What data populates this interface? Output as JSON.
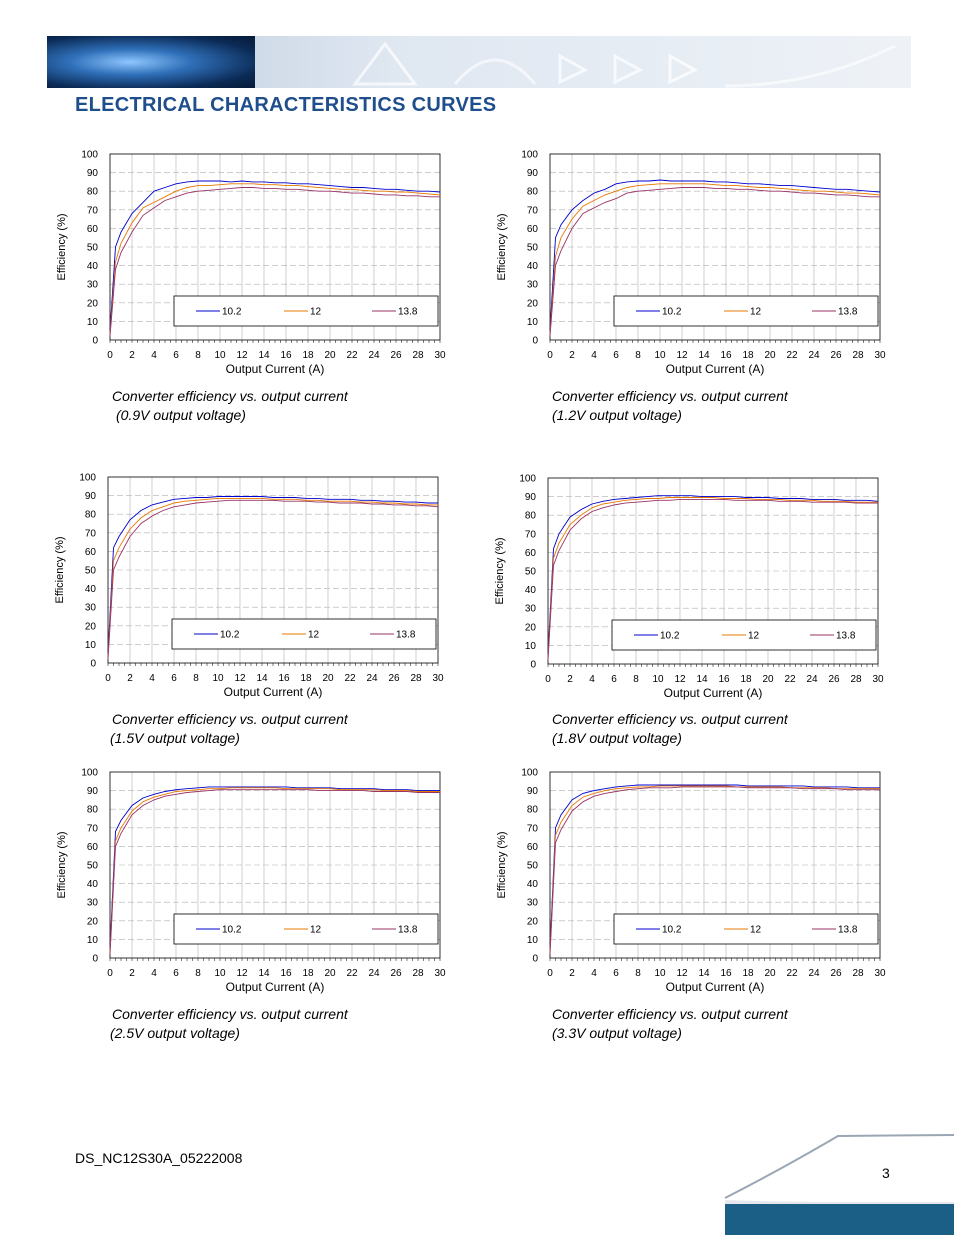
{
  "page": {
    "title": "ELECTRICAL CHARACTERISTICS CURVES",
    "doc_id": "DS_NC12S30A_05222008",
    "page_number": "3"
  },
  "colors": {
    "title": "#1f4e8c",
    "series": [
      "#0000cc",
      "#e87800",
      "#993366"
    ]
  },
  "chart_data": [
    {
      "type": "line",
      "caption_line1": "Converter efficiency vs. output current",
      "caption_line2": "(0.9V output voltage)",
      "xlabel": "Output Current (A)",
      "ylabel": "Efficiency (%)",
      "xlim": [
        0,
        30
      ],
      "ylim": [
        0,
        100
      ],
      "xticks": [
        0,
        2,
        4,
        6,
        8,
        10,
        12,
        14,
        16,
        18,
        20,
        22,
        24,
        26,
        28,
        30
      ],
      "yticks": [
        0,
        10,
        20,
        30,
        40,
        50,
        60,
        70,
        80,
        90,
        100
      ],
      "x": [
        0,
        0.5,
        1,
        2,
        3,
        4,
        5,
        6,
        7,
        8,
        9,
        10,
        11,
        12,
        13,
        14,
        15,
        16,
        17,
        18,
        19,
        20,
        21,
        22,
        23,
        24,
        25,
        26,
        27,
        28,
        29,
        30
      ],
      "series": [
        {
          "name": "10.2",
          "values": [
            5,
            50,
            58,
            68,
            74,
            80,
            82,
            84,
            85,
            85.5,
            85.5,
            85.5,
            85,
            85.5,
            85,
            85,
            84.5,
            84.5,
            84,
            84,
            83.5,
            83,
            82.5,
            82,
            82,
            81.5,
            81,
            81,
            80.5,
            80,
            80,
            79.5
          ]
        },
        {
          "name": "12",
          "values": [
            3,
            42,
            52,
            63,
            71,
            74,
            77,
            80,
            82,
            83,
            83,
            83.5,
            84,
            84,
            84,
            83.5,
            83.5,
            83,
            83,
            82.5,
            82,
            81.5,
            81,
            81,
            80.5,
            80,
            80,
            79.5,
            79.5,
            79,
            78.5,
            78
          ]
        },
        {
          "name": "13.8",
          "values": [
            2,
            38,
            47,
            58,
            67,
            71,
            75,
            77,
            79,
            80,
            80.5,
            81,
            81.5,
            82,
            82,
            81.5,
            81.5,
            81,
            81,
            80.5,
            80,
            80,
            79.5,
            79,
            79,
            78.5,
            78,
            78,
            77.5,
            77.5,
            77,
            77
          ]
        }
      ],
      "legend": "bottom-right",
      "grid": true
    },
    {
      "type": "line",
      "caption_line1": "Converter efficiency vs. output current",
      "caption_line2": "(1.2V output voltage)",
      "xlabel": "Output Current (A)",
      "ylabel": "Efficiency (%)",
      "xlim": [
        0,
        30
      ],
      "ylim": [
        0,
        100
      ],
      "xticks": [
        0,
        2,
        4,
        6,
        8,
        10,
        12,
        14,
        16,
        18,
        20,
        22,
        24,
        26,
        28,
        30
      ],
      "yticks": [
        0,
        10,
        20,
        30,
        40,
        50,
        60,
        70,
        80,
        90,
        100
      ],
      "x": [
        0,
        0.5,
        1,
        2,
        3,
        4,
        5,
        6,
        7,
        8,
        9,
        10,
        11,
        12,
        13,
        14,
        15,
        16,
        17,
        18,
        19,
        20,
        21,
        22,
        23,
        24,
        25,
        26,
        27,
        28,
        29,
        30
      ],
      "series": [
        {
          "name": "10.2",
          "values": [
            5,
            55,
            62,
            70,
            75,
            79,
            81,
            84,
            85,
            85.5,
            85.5,
            86,
            85.5,
            85.5,
            85.5,
            85.5,
            85,
            85,
            84.5,
            84,
            84,
            83.5,
            83,
            83,
            82.5,
            82,
            81.5,
            81,
            81,
            80.5,
            80,
            79.5
          ]
        },
        {
          "name": "12",
          "values": [
            3,
            45,
            55,
            65,
            72,
            75,
            78,
            80,
            82,
            83,
            83.5,
            84,
            84,
            84,
            84,
            84,
            83.5,
            83,
            83,
            82.5,
            82,
            82,
            81.5,
            81,
            80.5,
            80,
            80,
            79.5,
            79,
            79,
            78.5,
            78
          ]
        },
        {
          "name": "13.8",
          "values": [
            2,
            40,
            48,
            60,
            68,
            71,
            74,
            76,
            79,
            80,
            80.5,
            81,
            81.5,
            82,
            82,
            82,
            81.5,
            81.5,
            81,
            81,
            80.5,
            80,
            80,
            79.5,
            79,
            79,
            78.5,
            78,
            78,
            77.5,
            77,
            77
          ]
        }
      ],
      "legend": "bottom-right",
      "grid": true
    },
    {
      "type": "line",
      "caption_line1": "Converter efficiency vs. output current",
      "caption_line2": "(1.5V output voltage)",
      "xlabel": "Output Current (A)",
      "ylabel": "Efficiency (%)",
      "xlim": [
        0,
        30
      ],
      "ylim": [
        0,
        100
      ],
      "xticks": [
        0,
        2,
        4,
        6,
        8,
        10,
        12,
        14,
        16,
        18,
        20,
        22,
        24,
        26,
        28,
        30
      ],
      "yticks": [
        0,
        10,
        20,
        30,
        40,
        50,
        60,
        70,
        80,
        90,
        100
      ],
      "x": [
        0,
        0.5,
        1,
        2,
        3,
        4,
        5,
        6,
        7,
        8,
        9,
        10,
        11,
        12,
        13,
        14,
        15,
        16,
        17,
        18,
        19,
        20,
        21,
        22,
        23,
        24,
        25,
        26,
        27,
        28,
        29,
        30
      ],
      "series": [
        {
          "name": "10.2",
          "values": [
            5,
            62,
            68,
            77,
            82,
            85,
            86.5,
            88,
            88.5,
            89,
            89,
            89.5,
            89.5,
            89.5,
            89.5,
            89.5,
            89,
            89,
            89,
            88.5,
            88.5,
            88,
            88,
            88,
            87.5,
            87.5,
            87,
            87,
            86.5,
            86.5,
            86,
            86
          ]
        },
        {
          "name": "12",
          "values": [
            3,
            55,
            62,
            72,
            78,
            82,
            84,
            86,
            87,
            87.5,
            88,
            88.5,
            88.5,
            88.5,
            88.5,
            88.5,
            88,
            88,
            88,
            87.5,
            87.5,
            87,
            87,
            87,
            86.5,
            86.5,
            86,
            86,
            85.5,
            85.5,
            85,
            85
          ]
        },
        {
          "name": "13.8",
          "values": [
            2,
            50,
            57,
            68,
            75,
            79,
            82,
            84,
            85,
            86,
            86.5,
            87,
            87.5,
            87.5,
            87.5,
            87.5,
            87.5,
            87,
            87,
            87,
            86.5,
            86.5,
            86,
            86,
            86,
            85.5,
            85.5,
            85,
            85,
            84.5,
            84.5,
            84
          ]
        }
      ],
      "legend": "bottom-right",
      "grid": true
    },
    {
      "type": "line",
      "caption_line1": "Converter efficiency vs. output current",
      "caption_line2": "(1.8V output voltage)",
      "xlabel": "Output Current (A)",
      "ylabel": "Efficiency (%)",
      "xlim": [
        0,
        30
      ],
      "ylim": [
        0,
        100
      ],
      "xticks": [
        0,
        2,
        4,
        6,
        8,
        10,
        12,
        14,
        16,
        18,
        20,
        22,
        24,
        26,
        28,
        30
      ],
      "yticks": [
        0,
        10,
        20,
        30,
        40,
        50,
        60,
        70,
        80,
        90,
        100
      ],
      "x": [
        0,
        0.5,
        1,
        2,
        3,
        4,
        5,
        6,
        7,
        8,
        9,
        10,
        11,
        12,
        13,
        14,
        15,
        16,
        17,
        18,
        19,
        20,
        21,
        22,
        23,
        24,
        25,
        26,
        27,
        28,
        29,
        30
      ],
      "series": [
        {
          "name": "10.2",
          "values": [
            5,
            62,
            70,
            79,
            83,
            86,
            87.5,
            88.5,
            89,
            89.5,
            90,
            90.5,
            90.5,
            90.5,
            90.5,
            90,
            90,
            90,
            90,
            89.5,
            89.5,
            89.5,
            89,
            89,
            89,
            88.5,
            88.5,
            88.5,
            88,
            88,
            88,
            87.5
          ]
        },
        {
          "name": "12",
          "values": [
            3,
            57,
            65,
            75,
            80,
            84,
            86,
            87,
            88,
            88.5,
            89,
            89,
            89.5,
            89.5,
            89.5,
            89.5,
            89.5,
            89,
            89,
            89,
            88.5,
            88.5,
            88.5,
            88,
            88,
            88,
            87.5,
            87.5,
            87.5,
            87,
            87,
            87
          ]
        },
        {
          "name": "13.8",
          "values": [
            2,
            53,
            61,
            72,
            78,
            82,
            84,
            85.5,
            86.5,
            87,
            87.5,
            88,
            88,
            88.5,
            88.5,
            88.5,
            88.5,
            88.5,
            88,
            88,
            88,
            88,
            87.5,
            87.5,
            87.5,
            87,
            87,
            87,
            87,
            86.5,
            86.5,
            86.5
          ]
        }
      ],
      "legend": "bottom-right",
      "grid": true
    },
    {
      "type": "line",
      "caption_line1": "Converter efficiency vs. output current",
      "caption_line2": "(2.5V output voltage)",
      "xlabel": "Output Current (A)",
      "ylabel": "Efficiency (%)",
      "xlim": [
        0,
        30
      ],
      "ylim": [
        0,
        100
      ],
      "xticks": [
        0,
        2,
        4,
        6,
        8,
        10,
        12,
        14,
        16,
        18,
        20,
        22,
        24,
        26,
        28,
        30
      ],
      "yticks": [
        0,
        10,
        20,
        30,
        40,
        50,
        60,
        70,
        80,
        90,
        100
      ],
      "x": [
        0,
        0.5,
        1,
        2,
        3,
        4,
        5,
        6,
        7,
        8,
        9,
        10,
        11,
        12,
        13,
        14,
        15,
        16,
        17,
        18,
        19,
        20,
        21,
        22,
        23,
        24,
        25,
        26,
        27,
        28,
        29,
        30
      ],
      "series": [
        {
          "name": "10.2",
          "values": [
            5,
            68,
            74,
            82,
            86,
            88,
            89.5,
            90.5,
            91,
            91.5,
            92,
            92,
            92,
            92,
            92,
            92,
            92,
            92,
            91.5,
            91.5,
            91.5,
            91.5,
            91,
            91,
            91,
            91,
            90.5,
            90.5,
            90.5,
            90,
            90,
            90
          ]
        },
        {
          "name": "12",
          "values": [
            3,
            63,
            70,
            79,
            84,
            86.5,
            88,
            89.5,
            90,
            90.5,
            91,
            91,
            91.5,
            91.5,
            91.5,
            91.5,
            91.5,
            91,
            91,
            91,
            91,
            91,
            90.5,
            90.5,
            90.5,
            90.5,
            90,
            90,
            90,
            89.5,
            89.5,
            89.5
          ]
        },
        {
          "name": "13.8",
          "values": [
            2,
            60,
            67,
            77,
            82,
            85,
            87,
            88,
            89,
            89.5,
            90,
            90.5,
            90.5,
            90.5,
            90.5,
            90.5,
            90.5,
            90.5,
            90.5,
            90.5,
            90,
            90,
            90,
            90,
            90,
            89.5,
            89.5,
            89.5,
            89.5,
            89,
            89,
            89
          ]
        }
      ],
      "legend": "bottom-right",
      "grid": true
    },
    {
      "type": "line",
      "caption_line1": "Converter efficiency vs. output current",
      "caption_line2": "(3.3V output voltage)",
      "xlabel": "Output Current (A)",
      "ylabel": "Efficiency (%)",
      "xlim": [
        0,
        30
      ],
      "ylim": [
        0,
        100
      ],
      "xticks": [
        0,
        2,
        4,
        6,
        8,
        10,
        12,
        14,
        16,
        18,
        20,
        22,
        24,
        26,
        28,
        30
      ],
      "yticks": [
        0,
        10,
        20,
        30,
        40,
        50,
        60,
        70,
        80,
        90,
        100
      ],
      "x": [
        0,
        0.5,
        1,
        2,
        3,
        4,
        5,
        6,
        7,
        8,
        9,
        10,
        11,
        12,
        13,
        14,
        15,
        16,
        17,
        18,
        19,
        20,
        21,
        22,
        23,
        24,
        25,
        26,
        27,
        28,
        29,
        30
      ],
      "series": [
        {
          "name": "10.2",
          "values": [
            5,
            70,
            77,
            85,
            88.5,
            90,
            91,
            92,
            92.5,
            93,
            93,
            93,
            93,
            93,
            93,
            93,
            93,
            93,
            93,
            92.5,
            92.5,
            92.5,
            92.5,
            92.5,
            92.5,
            92,
            92,
            92,
            92,
            91.5,
            91.5,
            91.5
          ]
        },
        {
          "name": "12",
          "values": [
            3,
            66,
            73,
            82,
            86.5,
            88.5,
            90,
            91,
            91.5,
            92,
            92,
            92.5,
            92.5,
            92.5,
            92.5,
            92.5,
            92.5,
            92.5,
            92,
            92,
            92,
            92,
            92,
            91.5,
            91.5,
            91.5,
            91.5,
            91,
            91,
            91,
            91,
            91
          ]
        },
        {
          "name": "13.8",
          "values": [
            2,
            62,
            69,
            79,
            84,
            87,
            88.5,
            89.5,
            90.5,
            91,
            91.5,
            91.5,
            91.5,
            92,
            92,
            92,
            92,
            92,
            92,
            91.5,
            91.5,
            91.5,
            91.5,
            91.5,
            91,
            91,
            91,
            91,
            90.5,
            90.5,
            90.5,
            90.5
          ]
        }
      ],
      "legend": "bottom-right",
      "grid": true
    }
  ]
}
